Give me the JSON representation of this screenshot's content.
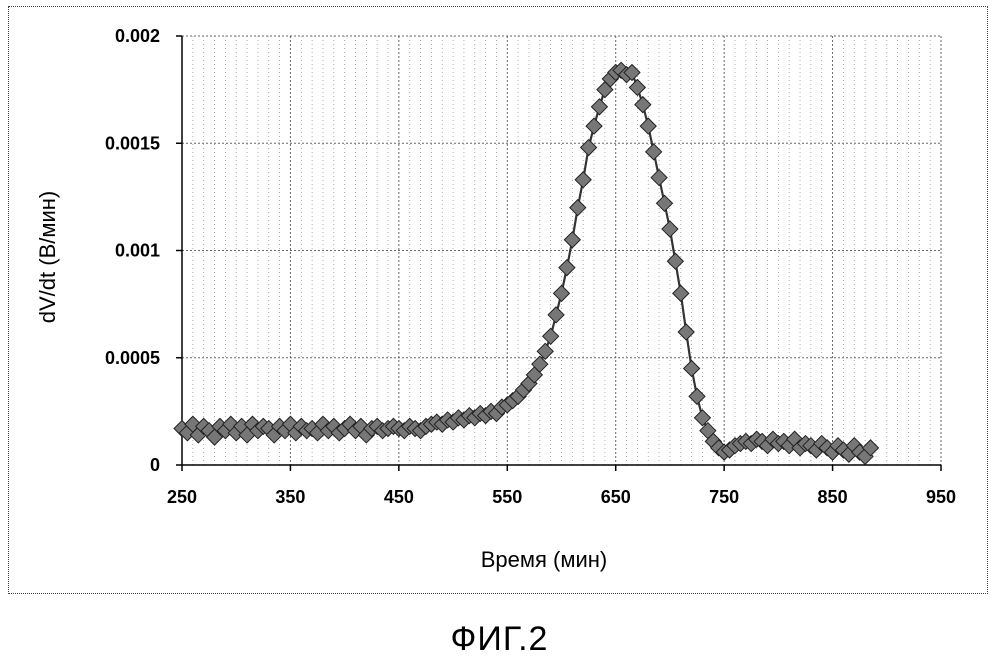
{
  "figure_caption": "ФИГ.2",
  "chart_data": {
    "type": "scatter",
    "title": "",
    "xlabel": "Время (мин)",
    "ylabel": "dV/dt (В/мин)",
    "xlim": [
      250,
      950
    ],
    "ylim": [
      0,
      0.002
    ],
    "x_ticks": [
      250,
      350,
      450,
      550,
      650,
      750,
      850,
      950
    ],
    "x_tick_labels": [
      "250",
      "350",
      "450",
      "550",
      "650",
      "750",
      "850",
      "950"
    ],
    "y_ticks": [
      0,
      0.0005,
      0.001,
      0.0015,
      0.002
    ],
    "y_tick_labels": [
      "0",
      "0.0005",
      "0.001",
      "0.0015",
      "0.002"
    ],
    "grid": true,
    "legend": "none",
    "series": [
      {
        "marker": "diamond",
        "line": true,
        "color": "#777777",
        "x": [
          250,
          255,
          260,
          265,
          270,
          275,
          280,
          285,
          290,
          295,
          300,
          305,
          310,
          315,
          320,
          325,
          330,
          335,
          340,
          345,
          350,
          355,
          360,
          365,
          370,
          375,
          380,
          385,
          390,
          395,
          400,
          405,
          410,
          415,
          420,
          425,
          430,
          435,
          440,
          445,
          450,
          455,
          460,
          465,
          470,
          475,
          480,
          485,
          490,
          495,
          500,
          505,
          510,
          515,
          520,
          525,
          530,
          535,
          540,
          545,
          550,
          555,
          560,
          565,
          570,
          575,
          580,
          585,
          590,
          595,
          600,
          605,
          610,
          615,
          620,
          625,
          630,
          635,
          640,
          645,
          650,
          655,
          660,
          665,
          670,
          675,
          680,
          685,
          690,
          695,
          700,
          705,
          710,
          715,
          720,
          725,
          730,
          735,
          740,
          745,
          750,
          755,
          760,
          765,
          770,
          775,
          780,
          785,
          790,
          795,
          800,
          805,
          810,
          815,
          820,
          825,
          830,
          835,
          840,
          845,
          850,
          855,
          860,
          865,
          870,
          875,
          880,
          885
        ],
        "y": [
          0.00017,
          0.00015,
          0.00019,
          0.00014,
          0.00018,
          0.00016,
          0.00013,
          0.00018,
          0.00016,
          0.00019,
          0.00015,
          0.00018,
          0.00014,
          0.00019,
          0.00016,
          0.00018,
          0.00017,
          0.00014,
          0.00018,
          0.00016,
          0.00019,
          0.00015,
          0.00018,
          0.00016,
          0.00017,
          0.00015,
          0.00019,
          0.00016,
          0.00018,
          0.00015,
          0.00017,
          0.00019,
          0.00016,
          0.00018,
          0.00014,
          0.00017,
          0.00018,
          0.00016,
          0.00017,
          0.00018,
          0.00017,
          0.00016,
          0.00018,
          0.00017,
          0.00016,
          0.00018,
          0.00019,
          0.0002,
          0.00019,
          0.00021,
          0.0002,
          0.00022,
          0.00021,
          0.00023,
          0.00022,
          0.00024,
          0.00023,
          0.00025,
          0.00024,
          0.00027,
          0.00028,
          0.0003,
          0.00032,
          0.00035,
          0.00038,
          0.00042,
          0.00047,
          0.00053,
          0.0006,
          0.0007,
          0.0008,
          0.00092,
          0.00105,
          0.0012,
          0.00133,
          0.00148,
          0.00158,
          0.00167,
          0.00175,
          0.0018,
          0.00183,
          0.00184,
          0.00182,
          0.00183,
          0.00176,
          0.00168,
          0.00158,
          0.00146,
          0.00134,
          0.00122,
          0.0011,
          0.00095,
          0.0008,
          0.00062,
          0.00045,
          0.00032,
          0.00022,
          0.00016,
          0.00011,
          8e-05,
          6e-05,
          7e-05,
          9e-05,
          0.0001,
          0.00011,
          0.0001,
          0.00012,
          0.00011,
          9e-05,
          0.00012,
          0.0001,
          0.00011,
          9e-05,
          0.00012,
          8e-05,
          0.0001,
          9e-05,
          7e-05,
          0.0001,
          8e-05,
          6e-05,
          9e-05,
          7e-05,
          5e-05,
          9e-05,
          6e-05,
          4e-05,
          8e-05
        ]
      }
    ]
  }
}
